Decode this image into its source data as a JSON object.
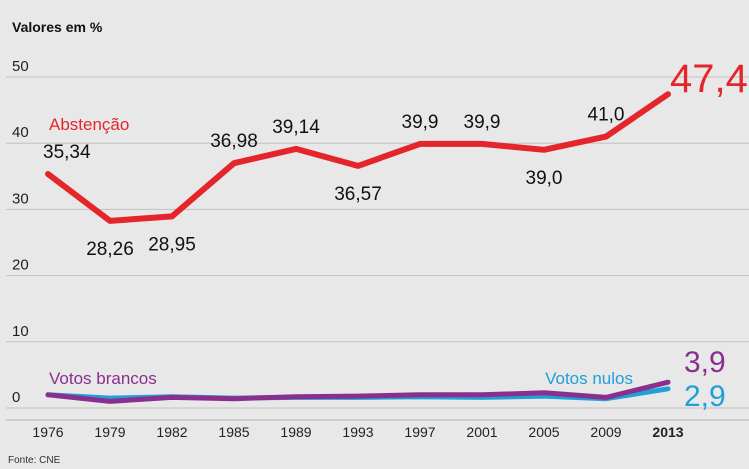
{
  "chart_data": {
    "type": "line",
    "ylabel": "Valores em %",
    "source": "Fonte: CNE",
    "ylim": [
      0,
      50
    ],
    "yticks": [
      "0",
      "10",
      "20",
      "30",
      "40",
      "50"
    ],
    "categories": [
      "1976",
      "1979",
      "1982",
      "1985",
      "1989",
      "1993",
      "1997",
      "2001",
      "2005",
      "2009",
      "2013"
    ],
    "highlight_category": "2013",
    "grid": true,
    "series": [
      {
        "name": "Abstenção",
        "color": "#e4262c",
        "values": [
          35.34,
          28.26,
          28.95,
          36.98,
          39.14,
          36.57,
          39.9,
          39.9,
          39.0,
          41.0,
          47.4
        ],
        "labels": [
          "35,34",
          "28,26",
          "28,95",
          "36,98",
          "39,14",
          "36,57",
          "39,9",
          "39,9",
          "39,0",
          "41,0",
          "47,4"
        ]
      },
      {
        "name": "Votos nulos",
        "color": "#1fa0d8",
        "values": [
          2.0,
          1.5,
          1.7,
          1.5,
          1.6,
          1.6,
          1.7,
          1.6,
          1.8,
          1.4,
          2.9
        ],
        "end_label": "2,9"
      },
      {
        "name": "Votos brancos",
        "color": "#8a2f8e",
        "values": [
          2.0,
          1.0,
          1.6,
          1.4,
          1.7,
          1.8,
          2.0,
          2.0,
          2.3,
          1.6,
          3.9
        ],
        "end_label": "3,9"
      }
    ]
  }
}
